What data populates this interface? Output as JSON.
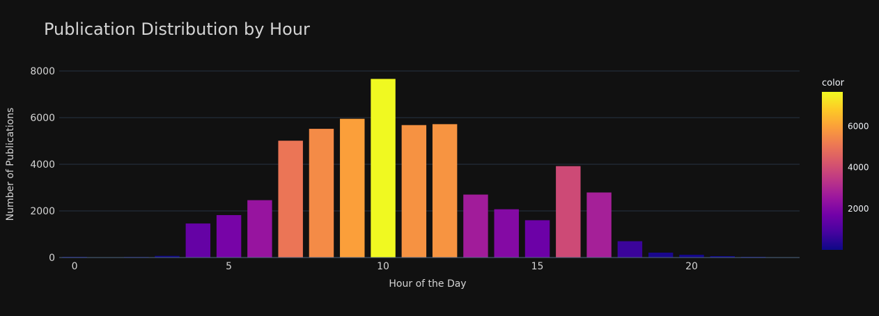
{
  "chart_data": {
    "type": "bar",
    "title": "Publication Distribution by Hour",
    "xlabel": "Hour of the Day",
    "ylabel": "Number of Publications",
    "x": [
      0,
      1,
      2,
      3,
      4,
      5,
      6,
      7,
      8,
      9,
      10,
      11,
      12,
      13,
      14,
      15,
      16,
      17,
      18,
      19,
      20,
      21,
      22,
      23
    ],
    "values": [
      30,
      10,
      25,
      70,
      1460,
      1820,
      2460,
      5010,
      5520,
      5950,
      7660,
      5680,
      5720,
      2700,
      2070,
      1600,
      3920,
      2790,
      700,
      210,
      120,
      60,
      30,
      15
    ],
    "xticks": [
      0,
      5,
      10,
      15,
      20
    ],
    "xtick_labels": [
      "0",
      "5",
      "10",
      "15",
      "20"
    ],
    "yticks": [
      0,
      2000,
      4000,
      6000,
      8000
    ],
    "ytick_labels": [
      "0",
      "2000",
      "4000",
      "6000",
      "8000"
    ],
    "xlim": [
      -0.5,
      23.5
    ],
    "ylim": [
      0,
      8000
    ],
    "grid": true,
    "colorbar": {
      "title": "color",
      "ticks": [
        2000,
        4000,
        6000
      ],
      "tick_labels": [
        "2000",
        "4000",
        "6000"
      ],
      "range": [
        10,
        7660
      ],
      "colorscale": [
        "#0d0887",
        "#46039f",
        "#7201a8",
        "#9c179e",
        "#bd3786",
        "#d8576b",
        "#ed7953",
        "#fb9f3a",
        "#fdca26",
        "#f0f921"
      ]
    },
    "colors": {
      "background": "#111111",
      "grid": "#283442",
      "text": "#f2f5fa",
      "title": "#d4d4d4",
      "axis_text": "#d4d4d4"
    }
  }
}
